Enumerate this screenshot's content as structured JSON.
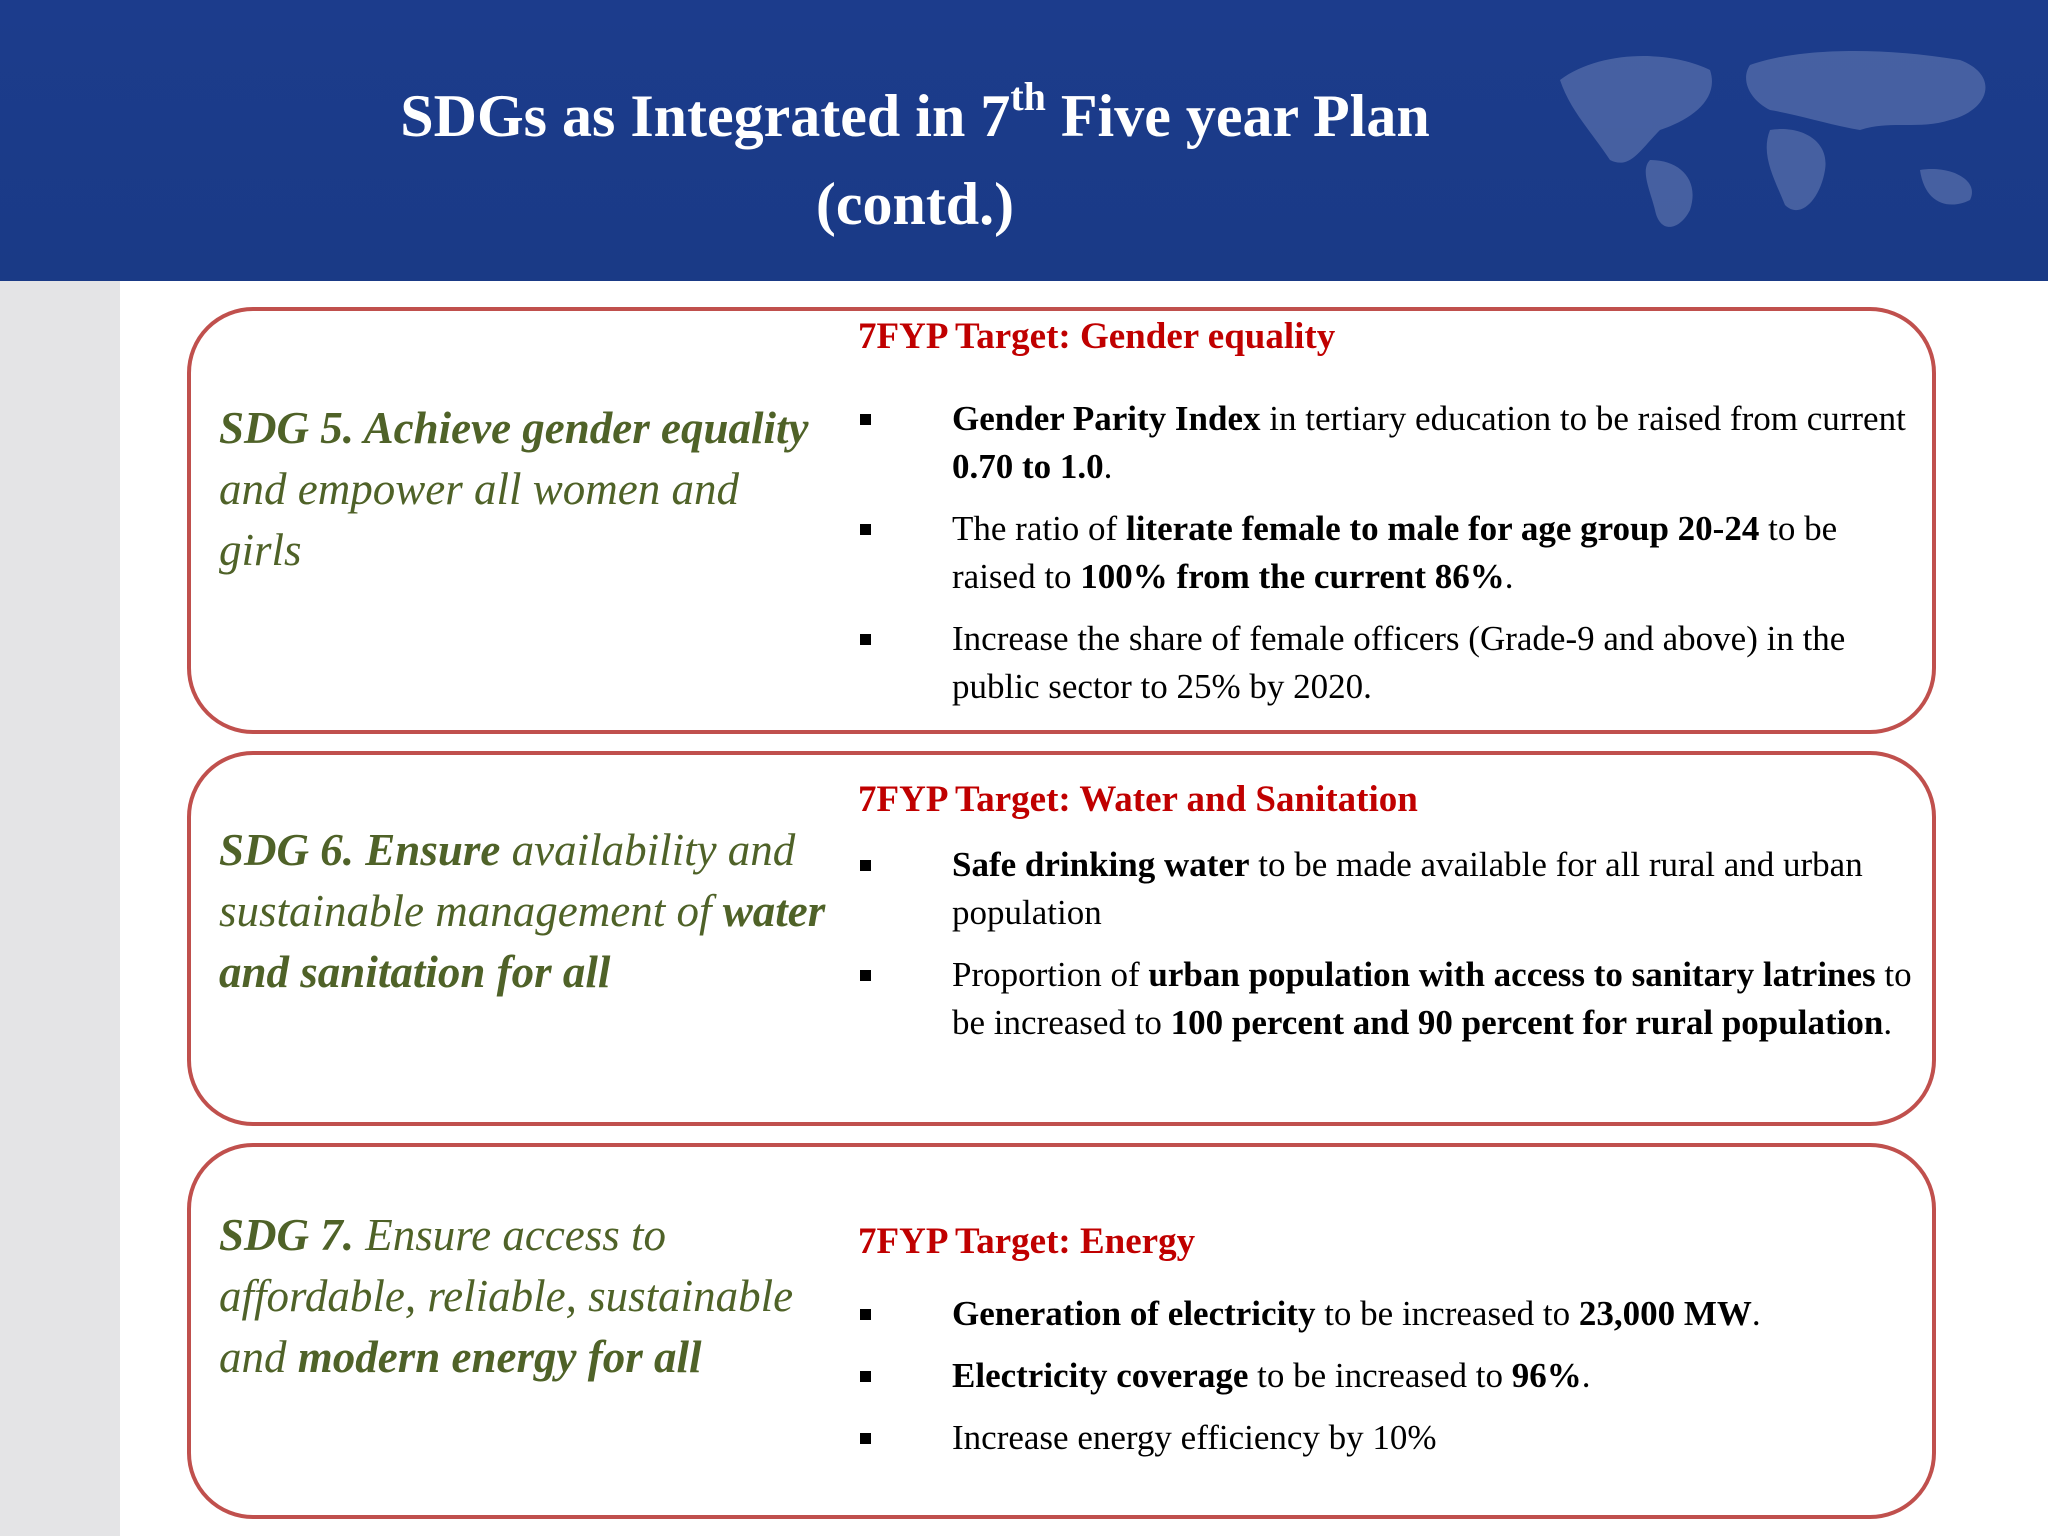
{
  "header": {
    "title": {
      "lines": [
        [
          {
            "t": "SDGs as Integrated in 7"
          },
          {
            "t": "th",
            "sup": true
          },
          {
            "t": " Five year Plan"
          }
        ],
        [
          {
            "t": "(contd.)"
          }
        ]
      ]
    }
  },
  "sections": [
    {
      "sdg": [
        {
          "t": "SDG 5. Achieve gender equality",
          "b": true
        },
        {
          "t": " and empower all women and girls"
        }
      ],
      "target": "7FYP Target: Gender equality",
      "bullets": [
        [
          {
            "t": "Gender Parity Index",
            "b": true
          },
          {
            "t": " in tertiary education to be raised from current "
          },
          {
            "t": "0.70 to 1.0",
            "b": true
          },
          {
            "t": "."
          }
        ],
        [
          {
            "t": "The ratio of "
          },
          {
            "t": "literate female to male for age group 20-24",
            "b": true
          },
          {
            "t": " to be raised to "
          },
          {
            "t": "100% from the current 86%",
            "b": true
          },
          {
            "t": "."
          }
        ],
        [
          {
            "t": "Increase the share of female officers (Grade-9 and above) in the public sector to 25% by 2020."
          }
        ]
      ]
    },
    {
      "sdg": [
        {
          "t": "SDG 6. Ensure",
          "b": true
        },
        {
          "t": " availability and sustainable management of "
        },
        {
          "t": "water and sanitation for all",
          "b": true
        }
      ],
      "target": "7FYP Target: Water and Sanitation",
      "bullets": [
        [
          {
            "t": "Safe drinking water",
            "b": true
          },
          {
            "t": " to be made available for all rural and urban population"
          }
        ],
        [
          {
            "t": "Proportion of "
          },
          {
            "t": "urban population with access to sanitary latrines",
            "b": true
          },
          {
            "t": " to be increased to "
          },
          {
            "t": "100 percent and 90 percent for rural population",
            "b": true
          },
          {
            "t": "."
          }
        ]
      ]
    },
    {
      "sdg": [
        {
          "t": "SDG 7.",
          "b": true
        },
        {
          "t": " Ensure access to affordable, reliable, sustainable and "
        },
        {
          "t": "modern energy for all",
          "b": true
        }
      ],
      "target": "7FYP Target: Energy",
      "bullets": [
        [
          {
            "t": "Generation of electricity",
            "b": true
          },
          {
            "t": " to be increased to "
          },
          {
            "t": "23,000 MW",
            "b": true
          },
          {
            "t": "."
          }
        ],
        [
          {
            "t": "Electricity coverage",
            "b": true
          },
          {
            "t": " to be increased to "
          },
          {
            "t": "96%",
            "b": true
          },
          {
            "t": "."
          }
        ],
        [
          {
            "t": "Increase energy efficiency by 10%"
          }
        ]
      ]
    }
  ]
}
